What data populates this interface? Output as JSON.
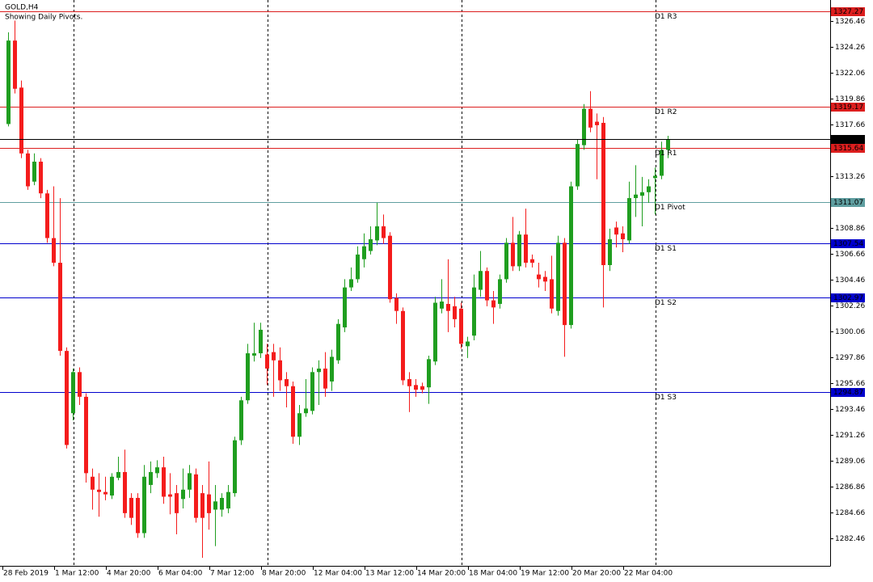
{
  "chart_data": {
    "type": "candlestick",
    "title": "GOLD,H4",
    "subtitle": "Showing Daily Pivots.",
    "categories": [
      "28 Feb 2019",
      null,
      null,
      null,
      null,
      null,
      null,
      null,
      "1 Mar 12:00",
      null,
      null,
      null,
      null,
      null,
      null,
      null,
      "4 Mar 20:00",
      null,
      null,
      null,
      null,
      null,
      null,
      null,
      "6 Mar 04:00",
      null,
      null,
      null,
      null,
      null,
      null,
      null,
      "7 Mar 12:00",
      null,
      null,
      null,
      null,
      null,
      null,
      null,
      "8 Mar 20:00",
      null,
      null,
      null,
      null,
      null,
      null,
      null,
      "12 Mar 04:00",
      null,
      null,
      null,
      null,
      null,
      null,
      null,
      "13 Mar 12:00",
      null,
      null,
      null,
      null,
      null,
      null,
      null,
      "14 Mar 20:00",
      null,
      null,
      null,
      null,
      null,
      null,
      null,
      "18 Mar 04:00",
      null,
      null,
      null,
      null,
      null,
      null,
      null,
      "19 Mar 12:00",
      null,
      null,
      null,
      null,
      null,
      null,
      null,
      "20 Mar 20:00",
      null,
      null,
      null,
      null,
      null,
      null,
      null,
      "22 Mar 04:00",
      null,
      null,
      null,
      null,
      null,
      null
    ],
    "open": [
      1317.7,
      1324.8,
      1320.8,
      1315.2,
      1312.8,
      1314.5,
      1311.8,
      1308.0,
      1305.9,
      1298.4,
      1293.1,
      1296.6,
      1294.5,
      1287.7,
      1286.6,
      1286.4,
      1286.1,
      1287.6,
      1288.1,
      1285.9,
      1285.9,
      1282.9,
      1287.0,
      1288.0,
      1288.5,
      1286.2,
      1286.3,
      1285.8,
      1286.6,
      1287.9,
      1286.3,
      1286.2,
      1284.9,
      1284.9,
      1285.0,
      1286.3,
      1290.8,
      1294.2,
      1298.0,
      1298.2,
      1298.1,
      1298.3,
      1297.6,
      1296.0,
      1295.4,
      1291.1,
      1293.1,
      1293.3,
      1296.6,
      1296.9,
      1295.8,
      1297.6,
      1300.4,
      1303.8,
      1304.5,
      1306.2,
      1306.9,
      1307.8,
      1309.0,
      1308.2,
      1302.9,
      1301.8,
      1296.0,
      1295.5,
      1295.4,
      1295.3,
      1297.5,
      1302.0,
      1302.4,
      1302.2,
      1302.0,
      1298.8,
      1299.7,
      1303.6,
      1305.2,
      1302.7,
      1302.4,
      1304.5,
      1307.6,
      1305.6,
      1308.3,
      1306.2,
      1304.9,
      1304.7,
      1304.5,
      1301.8,
      1307.6,
      1300.6,
      1312.4,
      1315.9,
      1319.0,
      1317.9,
      1317.8,
      1305.7,
      1308.9,
      1308.4,
      1307.8,
      1311.4,
      1311.6,
      1311.9,
      1313.1,
      1313.3,
      1315.5
    ],
    "high": [
      1325.5,
      1326.5,
      1321.4,
      1315.5,
      1315.2,
      1314.8,
      1312.1,
      1312.4,
      1311.4,
      1298.7,
      1296.9,
      1297.0,
      1294.8,
      1288.4,
      1288.0,
      1287.7,
      1288.0,
      1289.4,
      1290.0,
      1286.3,
      1286.3,
      1288.7,
      1289.0,
      1289.1,
      1289.4,
      1288.0,
      1287.0,
      1288.4,
      1288.7,
      1288.4,
      1287.0,
      1289.0,
      1287.0,
      1286.3,
      1287.0,
      1291.1,
      1294.5,
      1299.0,
      1300.8,
      1300.8,
      1299.0,
      1299.0,
      1298.7,
      1296.6,
      1295.8,
      1293.8,
      1296.0,
      1297.0,
      1297.6,
      1298.3,
      1298.5,
      1301.1,
      1304.5,
      1305.5,
      1307.3,
      1308.4,
      1309.0,
      1311.0,
      1310.0,
      1308.5,
      1303.3,
      1302.1,
      1296.6,
      1296.0,
      1295.7,
      1298.0,
      1303.0,
      1304.5,
      1306.2,
      1303.0,
      1302.5,
      1299.6,
      1304.9,
      1306.9,
      1305.5,
      1303.5,
      1304.9,
      1308.0,
      1309.8,
      1308.6,
      1310.5,
      1306.6,
      1305.9,
      1305.2,
      1306.5,
      1308.2,
      1308.0,
      1312.8,
      1316.4,
      1319.4,
      1320.5,
      1318.6,
      1318.3,
      1308.8,
      1309.4,
      1309.0,
      1312.8,
      1314.2,
      1313.2,
      1313.0,
      1314.0,
      1316.2,
      1316.7
    ],
    "low": [
      1317.5,
      1320.3,
      1314.8,
      1312.1,
      1312.5,
      1311.4,
      1307.6,
      1305.6,
      1298.0,
      1290.1,
      1292.5,
      1293.8,
      1287.2,
      1284.9,
      1284.3,
      1285.7,
      1285.8,
      1287.4,
      1284.2,
      1283.6,
      1282.5,
      1282.5,
      1286.3,
      1287.6,
      1285.4,
      1284.5,
      1282.8,
      1285.0,
      1285.9,
      1283.8,
      1280.8,
      1283.2,
      1281.8,
      1284.3,
      1284.6,
      1286.0,
      1290.4,
      1293.9,
      1297.5,
      1297.8,
      1295.5,
      1294.5,
      1295.0,
      1293.6,
      1290.5,
      1290.4,
      1292.8,
      1293.0,
      1293.8,
      1294.5,
      1295.0,
      1297.3,
      1300.0,
      1303.5,
      1304.2,
      1305.5,
      1306.6,
      1307.4,
      1307.5,
      1302.5,
      1300.7,
      1295.5,
      1293.2,
      1294.5,
      1294.8,
      1293.9,
      1297.2,
      1301.6,
      1300.0,
      1300.4,
      1298.6,
      1297.8,
      1299.3,
      1303.0,
      1302.2,
      1300.7,
      1302.0,
      1304.2,
      1305.2,
      1305.2,
      1305.5,
      1305.5,
      1303.8,
      1303.5,
      1301.6,
      1301.4,
      1297.9,
      1300.3,
      1312.1,
      1315.5,
      1317.0,
      1313.0,
      1302.1,
      1305.2,
      1307.2,
      1306.8,
      1307.5,
      1309.8,
      1309.0,
      1311.0,
      1310.0,
      1313.0,
      1314.8
    ],
    "close": [
      1324.8,
      1320.7,
      1315.2,
      1312.4,
      1314.5,
      1311.8,
      1308.0,
      1305.9,
      1298.4,
      1290.4,
      1296.6,
      1294.5,
      1288.0,
      1286.6,
      1286.4,
      1286.2,
      1287.7,
      1288.1,
      1284.6,
      1284.2,
      1282.9,
      1287.7,
      1288.1,
      1288.5,
      1286.0,
      1286.0,
      1284.6,
      1286.6,
      1288.0,
      1284.2,
      1284.2,
      1284.6,
      1285.6,
      1285.9,
      1286.4,
      1290.8,
      1294.2,
      1298.2,
      1298.2,
      1300.2,
      1296.9,
      1297.6,
      1295.9,
      1295.4,
      1291.1,
      1293.1,
      1293.5,
      1296.6,
      1296.9,
      1295.2,
      1297.9,
      1300.7,
      1303.8,
      1304.5,
      1306.6,
      1307.3,
      1307.9,
      1309.0,
      1308.0,
      1302.8,
      1301.8,
      1295.9,
      1295.4,
      1295.1,
      1295.1,
      1297.7,
      1302.5,
      1302.6,
      1301.8,
      1301.1,
      1299.0,
      1299.2,
      1303.8,
      1305.2,
      1302.7,
      1302.1,
      1304.5,
      1307.6,
      1305.6,
      1308.3,
      1305.9,
      1305.9,
      1304.5,
      1304.3,
      1302.0,
      1307.6,
      1300.6,
      1312.4,
      1316.0,
      1319.0,
      1317.4,
      1317.6,
      1305.7,
      1307.9,
      1308.3,
      1307.9,
      1311.4,
      1311.7,
      1311.9,
      1312.4,
      1313.3,
      1315.5,
      1316.42
    ],
    "up_color": "#1f9e1f",
    "down_color": "#f41c1c",
    "levels": [
      {
        "name": "D1 R3",
        "value": 1327.27,
        "color": "#dc1e1e"
      },
      {
        "name": "D1 R2",
        "value": 1319.17,
        "color": "#dc1e1e"
      },
      {
        "name": "D1 R1",
        "value": 1315.64,
        "color": "#dc1e1e"
      },
      {
        "name": "D1 Pivot",
        "value": 1311.07,
        "color": "#5f9ea0"
      },
      {
        "name": "D1 S1",
        "value": 1307.54,
        "color": "#0000cd"
      },
      {
        "name": "D1 S2",
        "value": 1302.97,
        "color": "#0000cd"
      },
      {
        "name": "D1 S3",
        "value": 1294.87,
        "color": "#0000cd"
      }
    ],
    "ylim": [
      1280.12,
      1328.25
    ],
    "yticks": [
      1326.46,
      1324.26,
      1322.06,
      1319.86,
      1317.66,
      1313.26,
      1308.86,
      1306.66,
      1304.46,
      1302.26,
      1300.06,
      1297.86,
      1295.66,
      1293.46,
      1291.26,
      1289.06,
      1286.86,
      1284.66,
      1282.46
    ],
    "grid": false
  }
}
